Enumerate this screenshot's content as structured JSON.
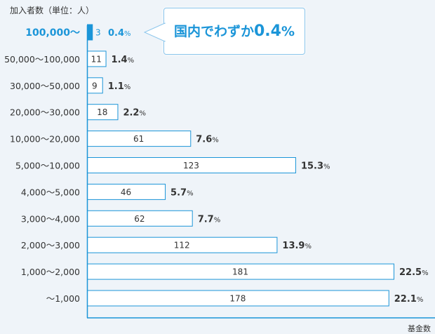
{
  "chart_data": {
    "type": "bar",
    "orientation": "horizontal",
    "ylabel": "加入者数（単位：人）",
    "xlabel": "基金数",
    "categories": [
      "100,000〜",
      "50,000〜100,000",
      "30,000〜50,000",
      "20,000〜30,000",
      "10,000〜20,000",
      "5,000〜10,000",
      "4,000〜5,000",
      "3,000〜4,000",
      "2,000〜3,000",
      "1,000〜2,000",
      "〜1,000"
    ],
    "values": [
      3,
      11,
      9,
      18,
      61,
      123,
      46,
      62,
      112,
      181,
      178
    ],
    "percent_labels": [
      "0.4",
      "1.4",
      "1.1",
      "2.2",
      "7.6",
      "15.3",
      "5.7",
      "7.7",
      "13.9",
      "22.5",
      "22.1"
    ],
    "percent_unit": "%",
    "highlight_index": 0,
    "grid": false,
    "colors": {
      "accent": "#1b95d8",
      "bar_fill": "#ffffff",
      "bar_border": "#1b95d8",
      "text": "#333333",
      "background": "#eff4f9"
    }
  },
  "callout": {
    "text": "国内でわずか",
    "value": "0.4",
    "unit": "%"
  }
}
